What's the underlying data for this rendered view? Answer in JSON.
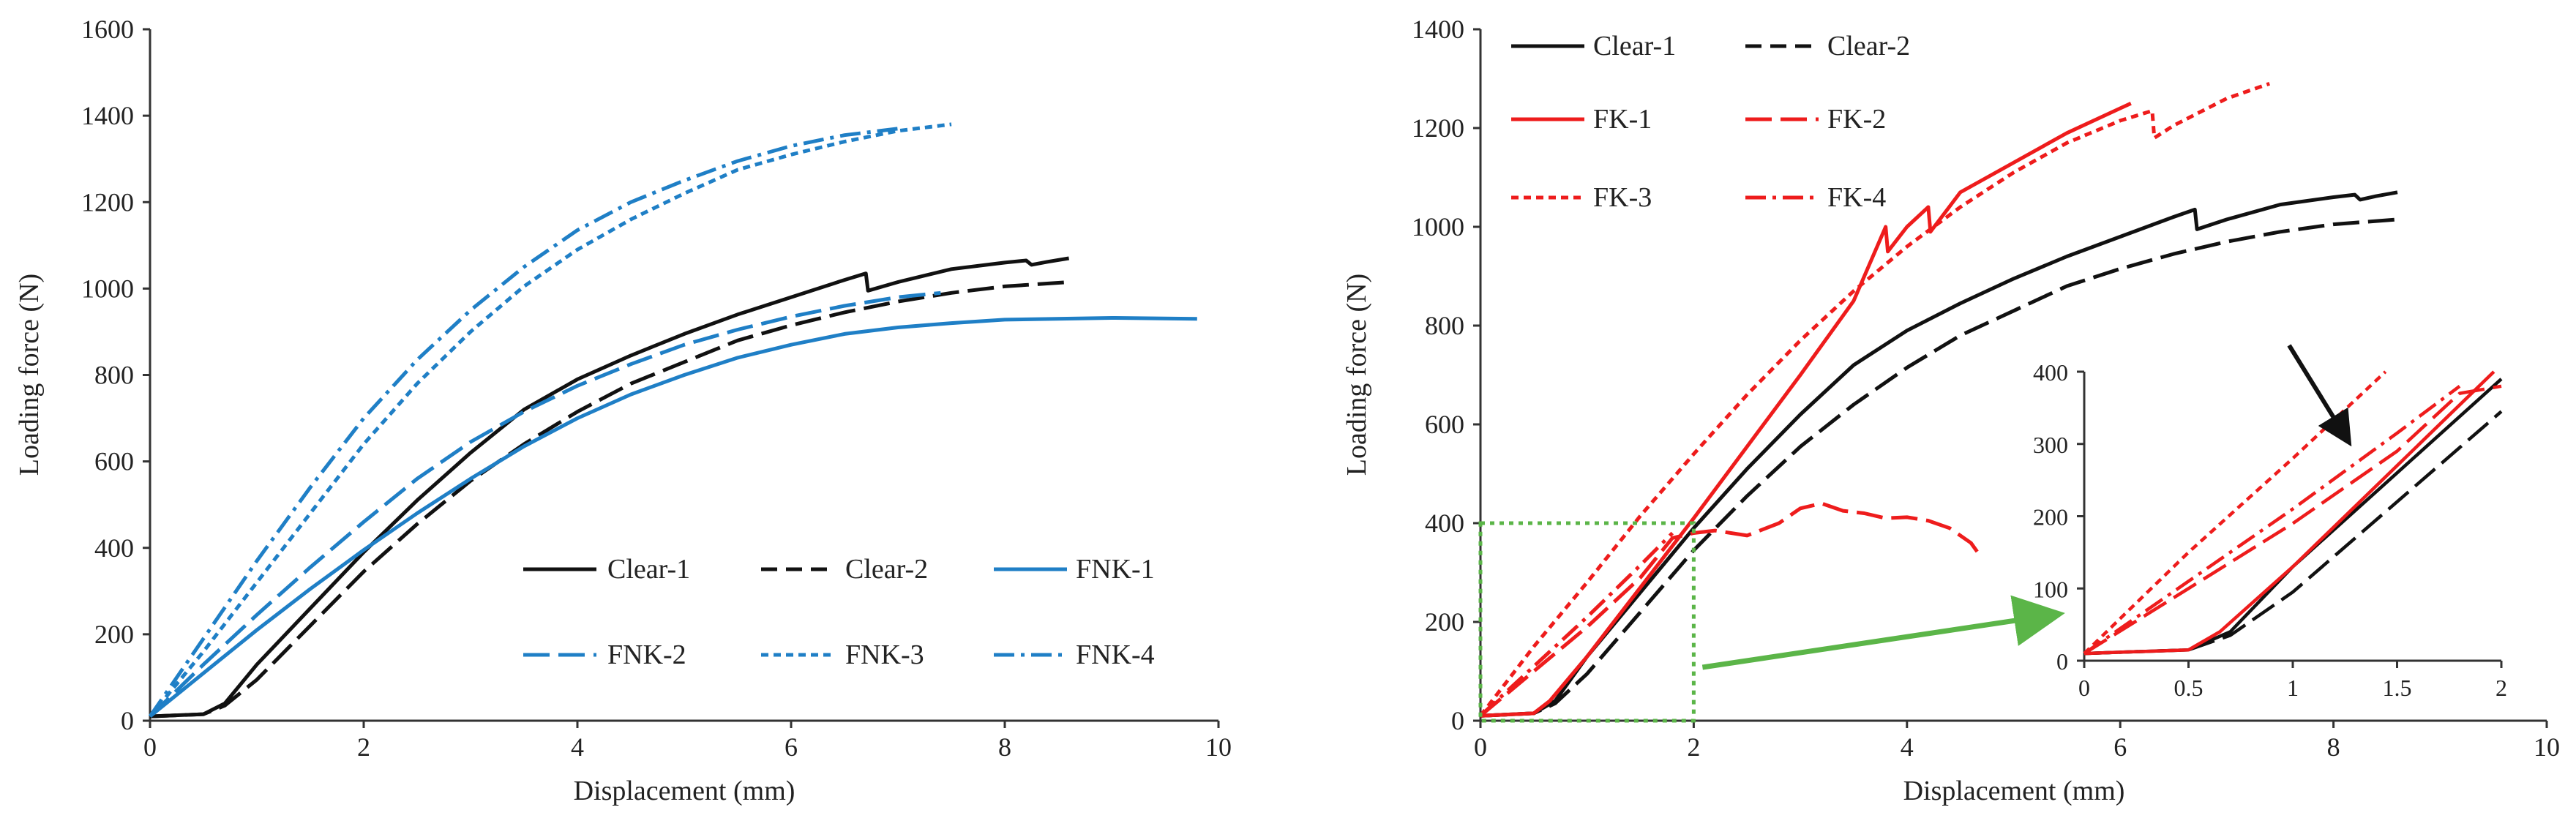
{
  "colors": {
    "black": "#111111",
    "blue": "#1f7fc6",
    "red": "#ee1c1c",
    "green": "#5bb548"
  },
  "chart_data": [
    {
      "type": "line",
      "title": "",
      "xlabel": "Displacement (mm)",
      "ylabel": "Loading force (N)",
      "xlim": [
        0,
        10
      ],
      "ylim": [
        0,
        1600
      ],
      "xticks": [
        "0",
        "2",
        "4",
        "6",
        "8",
        "10"
      ],
      "yticks": [
        "0",
        "200",
        "400",
        "600",
        "800",
        "1000",
        "1200",
        "1400",
        "1600"
      ],
      "series": [
        {
          "name": "Clear-1",
          "color": "black",
          "dash": "solid",
          "x": [
            0,
            0.5,
            0.7,
            1,
            1.5,
            2,
            2.5,
            3,
            3.5,
            4,
            4.5,
            5,
            5.5,
            6,
            6.5,
            6.7,
            6.72,
            7,
            7.5,
            8,
            8.2,
            8.25,
            8.4,
            8.6
          ],
          "y": [
            10,
            15,
            40,
            130,
            260,
            390,
            510,
            620,
            720,
            790,
            845,
            895,
            940,
            980,
            1020,
            1035,
            995,
            1015,
            1045,
            1060,
            1065,
            1055,
            1062,
            1070
          ]
        },
        {
          "name": "Clear-2",
          "color": "black",
          "dash": "long",
          "x": [
            0,
            0.5,
            0.7,
            1,
            1.5,
            2,
            2.5,
            3,
            3.5,
            4,
            4.5,
            5,
            5.5,
            6,
            6.5,
            7,
            7.5,
            8,
            8.6
          ],
          "y": [
            10,
            15,
            35,
            95,
            220,
            345,
            455,
            555,
            640,
            715,
            780,
            830,
            880,
            915,
            945,
            970,
            990,
            1005,
            1015
          ]
        },
        {
          "name": "FNK-1",
          "color": "blue",
          "dash": "solid",
          "x": [
            0,
            0.5,
            1,
            1.5,
            2,
            2.5,
            3,
            3.5,
            4,
            4.5,
            5,
            5.5,
            6,
            6.5,
            7,
            7.5,
            8,
            9,
            9.8
          ],
          "y": [
            10,
            110,
            210,
            305,
            395,
            480,
            560,
            635,
            700,
            755,
            800,
            840,
            870,
            895,
            910,
            920,
            928,
            932,
            930
          ]
        },
        {
          "name": "FNK-2",
          "color": "blue",
          "dash": "long",
          "x": [
            0,
            0.5,
            1,
            1.5,
            2,
            2.5,
            3,
            3.5,
            4,
            4.5,
            5,
            5.5,
            6,
            6.5,
            7,
            7.4
          ],
          "y": [
            10,
            130,
            245,
            355,
            460,
            560,
            645,
            715,
            775,
            825,
            870,
            905,
            935,
            960,
            980,
            990
          ]
        },
        {
          "name": "FNK-3",
          "color": "blue",
          "dash": "short",
          "x": [
            0,
            0.5,
            1,
            1.5,
            2,
            2.5,
            3,
            3.5,
            4,
            4.5,
            5,
            5.5,
            6,
            6.5,
            7,
            7.5
          ],
          "y": [
            10,
            160,
            320,
            480,
            640,
            780,
            900,
            1005,
            1090,
            1160,
            1220,
            1275,
            1310,
            1340,
            1365,
            1380
          ]
        },
        {
          "name": "FNK-4",
          "color": "blue",
          "dash": "dashdot",
          "x": [
            0,
            0.5,
            1,
            1.5,
            2,
            2.5,
            3,
            3.5,
            4,
            4.5,
            5,
            5.5,
            6,
            6.5,
            7
          ],
          "y": [
            10,
            190,
            370,
            540,
            700,
            835,
            950,
            1050,
            1135,
            1200,
            1250,
            1295,
            1330,
            1355,
            1370
          ]
        }
      ],
      "legend": {
        "position": "bottom-right",
        "entries": [
          "Clear-1",
          "Clear-2",
          "FNK-1",
          "FNK-2",
          "FNK-3",
          "FNK-4"
        ]
      }
    },
    {
      "type": "line",
      "title": "",
      "xlabel": "Displacement (mm)",
      "ylabel": "Loading force (N)",
      "xlim": [
        0,
        10
      ],
      "ylim": [
        0,
        1400
      ],
      "xticks": [
        "0",
        "2",
        "4",
        "6",
        "8",
        "10"
      ],
      "yticks": [
        "0",
        "200",
        "400",
        "600",
        "800",
        "1000",
        "1200",
        "1400"
      ],
      "series": [
        {
          "name": "Clear-1",
          "color": "black",
          "dash": "solid",
          "x": [
            0,
            0.5,
            0.7,
            1,
            1.5,
            2,
            2.5,
            3,
            3.5,
            4,
            4.5,
            5,
            5.5,
            6,
            6.5,
            6.7,
            6.72,
            7,
            7.5,
            8,
            8.2,
            8.25,
            8.4,
            8.6
          ],
          "y": [
            10,
            15,
            40,
            130,
            260,
            390,
            510,
            620,
            720,
            790,
            845,
            895,
            940,
            980,
            1020,
            1035,
            995,
            1015,
            1045,
            1060,
            1065,
            1055,
            1062,
            1070
          ]
        },
        {
          "name": "Clear-2",
          "color": "black",
          "dash": "long",
          "x": [
            0,
            0.5,
            0.7,
            1,
            1.5,
            2,
            2.5,
            3,
            3.5,
            4,
            4.5,
            5,
            5.5,
            6,
            6.5,
            7,
            7.5,
            8,
            8.6
          ],
          "y": [
            10,
            15,
            35,
            95,
            220,
            345,
            455,
            555,
            640,
            715,
            780,
            830,
            880,
            915,
            945,
            970,
            990,
            1005,
            1015
          ]
        },
        {
          "name": "FK-1",
          "color": "red",
          "dash": "solid",
          "x": [
            0,
            0.5,
            0.65,
            1,
            1.5,
            2,
            2.5,
            3,
            3.5,
            3.8,
            3.82,
            4,
            4.2,
            4.22,
            4.5,
            5,
            5.5,
            6,
            6.1
          ],
          "y": [
            10,
            15,
            40,
            130,
            270,
            410,
            555,
            700,
            850,
            1000,
            950,
            1000,
            1040,
            990,
            1070,
            1130,
            1190,
            1240,
            1250
          ]
        },
        {
          "name": "FK-2",
          "color": "red",
          "dash": "long",
          "x": [
            0,
            0.5,
            1,
            1.5,
            1.8,
            2.0,
            2.2,
            2.5,
            2.8,
            3,
            3.2,
            3.4,
            3.6,
            3.8,
            4,
            4.2,
            4.4,
            4.6,
            4.7
          ],
          "y": [
            10,
            100,
            190,
            290,
            370,
            380,
            385,
            375,
            400,
            430,
            440,
            425,
            420,
            410,
            412,
            405,
            390,
            360,
            330
          ]
        },
        {
          "name": "FK-3",
          "color": "red",
          "dash": "short",
          "x": [
            0,
            0.5,
            1,
            1.5,
            2,
            2.5,
            3,
            3.5,
            4,
            4.5,
            5,
            5.5,
            6,
            6.3,
            6.32,
            6.5,
            7,
            7.4
          ],
          "y": [
            10,
            150,
            280,
            415,
            540,
            660,
            770,
            870,
            960,
            1040,
            1110,
            1170,
            1215,
            1235,
            1180,
            1205,
            1260,
            1290
          ]
        },
        {
          "name": "FK-4",
          "color": "red",
          "dash": "dashdot",
          "x": [
            0,
            0.5,
            1,
            1.5,
            1.8
          ],
          "y": [
            10,
            110,
            210,
            315,
            380
          ]
        }
      ],
      "legend": {
        "position": "top-left",
        "entries": [
          "Clear-1",
          "Clear-2",
          "FK-1",
          "FK-2",
          "FK-3",
          "FK-4"
        ]
      },
      "zoom_box": {
        "xlim": [
          0,
          2
        ],
        "ylim": [
          0,
          400
        ],
        "color": "green"
      },
      "inset": {
        "xlim": [
          0,
          2
        ],
        "ylim": [
          0,
          400
        ],
        "xticks": [
          "0",
          "0.5",
          "1",
          "1.5",
          "2"
        ],
        "yticks": [
          "0",
          "100",
          "200",
          "300",
          "400"
        ],
        "arrow_target": {
          "x": 1.3,
          "y": 300
        }
      }
    }
  ]
}
